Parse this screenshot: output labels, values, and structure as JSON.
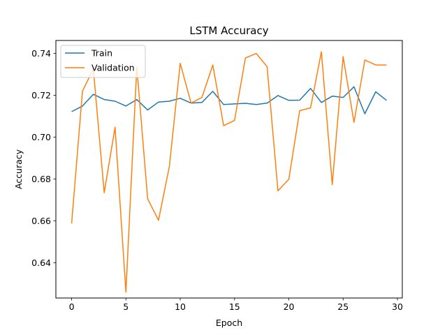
{
  "chart_data": {
    "type": "line",
    "title": "LSTM Accuracy",
    "xlabel": "Epoch",
    "ylabel": "Accuracy",
    "xlim": [
      -1.45,
      30.45
    ],
    "ylim": [
      0.6232,
      0.7462
    ],
    "xticks": [
      0,
      5,
      10,
      15,
      20,
      25,
      30
    ],
    "xtick_labels": [
      "0",
      "5",
      "10",
      "15",
      "20",
      "25",
      "30"
    ],
    "yticks": [
      0.64,
      0.66,
      0.68,
      0.7,
      0.72,
      0.74
    ],
    "ytick_labels": [
      "0.64",
      "0.66",
      "0.68",
      "0.70",
      "0.72",
      "0.74"
    ],
    "grid": false,
    "legend_position": "upper-left",
    "x": [
      0,
      1,
      2,
      3,
      4,
      5,
      6,
      7,
      8,
      9,
      10,
      11,
      12,
      13,
      14,
      15,
      16,
      17,
      18,
      19,
      20,
      21,
      22,
      23,
      24,
      25,
      26,
      27,
      28,
      29
    ],
    "series": [
      {
        "name": "Train",
        "color": "#1f77b4",
        "values": [
          0.7122,
          0.7149,
          0.7205,
          0.718,
          0.7172,
          0.7149,
          0.718,
          0.713,
          0.7168,
          0.7172,
          0.7186,
          0.7163,
          0.7166,
          0.7219,
          0.7156,
          0.7159,
          0.7162,
          0.7156,
          0.7163,
          0.7199,
          0.7176,
          0.7177,
          0.7233,
          0.7166,
          0.7196,
          0.719,
          0.7241,
          0.7112,
          0.7217,
          0.7176
        ]
      },
      {
        "name": "Validation",
        "color": "#ff7f0e",
        "values": [
          0.6588,
          0.722,
          0.7326,
          0.6735,
          0.7048,
          0.626,
          0.7337,
          0.6706,
          0.6603,
          0.686,
          0.7353,
          0.7163,
          0.719,
          0.7345,
          0.7055,
          0.708,
          0.7378,
          0.74,
          0.7337,
          0.6744,
          0.6799,
          0.7127,
          0.714,
          0.7408,
          0.6774,
          0.7385,
          0.7071,
          0.7369,
          0.7345,
          0.7345
        ]
      }
    ]
  }
}
